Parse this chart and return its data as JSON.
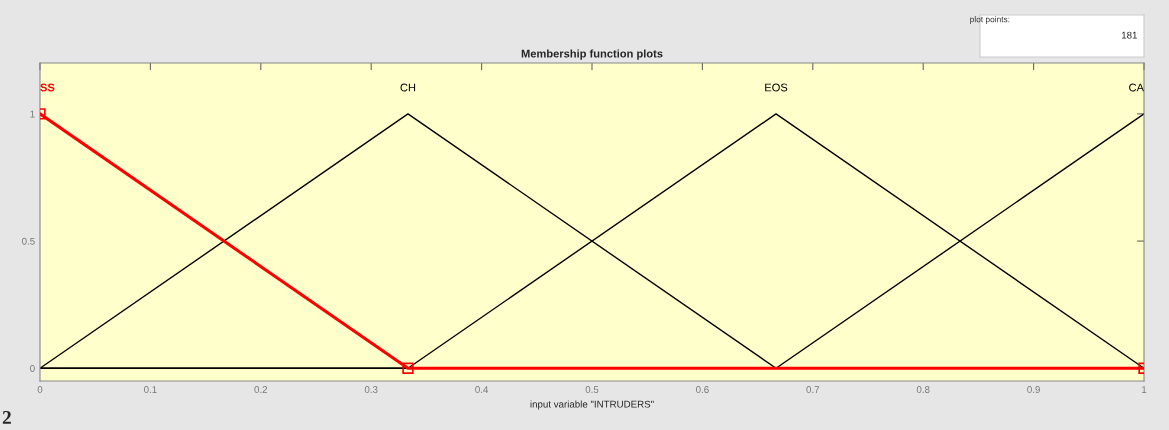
{
  "chart_data": {
    "type": "line",
    "title": "Membership function plots",
    "xlabel": "input variable \"INTRUDERS\"",
    "series": [
      {
        "name": "SS",
        "color": "#ff0000",
        "x": [
          0,
          0.3333,
          1
        ],
        "values": [
          1,
          0,
          0
        ],
        "marker": "square"
      },
      {
        "name": "CH",
        "color": "#000000",
        "x": [
          0,
          0.3333,
          0.6667,
          1
        ],
        "values": [
          0,
          1,
          0,
          0
        ]
      },
      {
        "name": "EOS",
        "color": "#000000",
        "x": [
          0,
          0.3333,
          0.6667,
          1
        ],
        "values": [
          0,
          0,
          1,
          0
        ]
      },
      {
        "name": "CA",
        "color": "#000000",
        "x": [
          0,
          0.6667,
          1
        ],
        "values": [
          0,
          0,
          1
        ]
      }
    ],
    "xlim": [
      0,
      1
    ],
    "xticks": [
      0,
      0.1,
      0.2,
      0.3,
      0.4,
      0.5,
      0.6,
      0.7,
      0.8,
      0.9,
      1
    ],
    "ylim": [
      -0.05,
      1.2
    ],
    "yticks": [
      0,
      0.5,
      1
    ],
    "grid": false,
    "legend": false,
    "annotations": [
      "plot points:",
      "181",
      "2"
    ]
  }
}
